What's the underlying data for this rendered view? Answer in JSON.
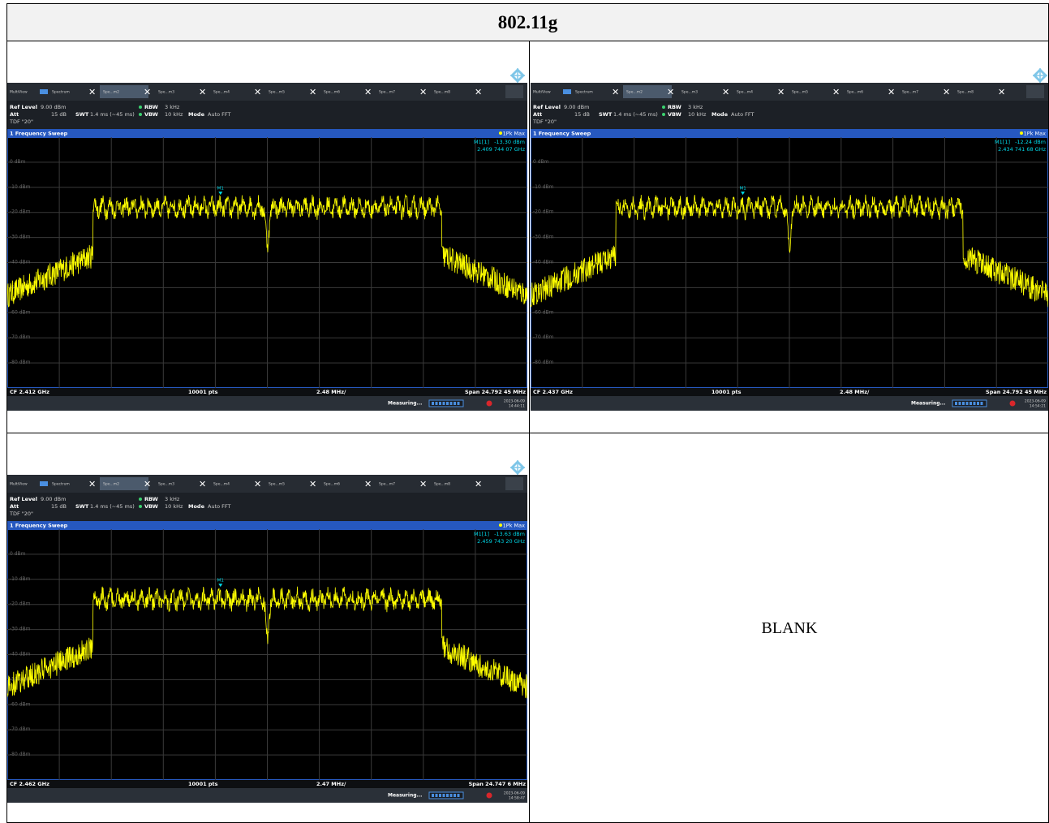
{
  "header": {
    "title": "802.11g"
  },
  "screens": [
    {
      "tabs": [
        "MultiView",
        "Spectrum",
        "Spe...m2",
        "Spe...m3",
        "Spe...m4",
        "Spe...m5",
        "Spe...m6",
        "Spe...m7",
        "Spe...m8"
      ],
      "ref_level_label": "Ref Level",
      "ref_level": "9.00 dBm",
      "att_label": "Att",
      "att": "15 dB",
      "swt_label": "SWT",
      "swt": "1.4 ms (~45 ms)",
      "rbw_label": "RBW",
      "rbw": "3 kHz",
      "vbw_label": "VBW",
      "vbw": "10 kHz",
      "mode_label": "Mode",
      "mode": "Auto FFT",
      "tdf": "TDF \"20\"",
      "window": "1 Frequency Sweep",
      "trace": "1Pk Max",
      "marker_name": "M1[1]",
      "marker_level": "-13.30 dBm",
      "marker_freq": "2.409 744 07 GHz",
      "marker_label": "M1",
      "y_labels": [
        "0 dBm",
        "-10 dBm",
        "-20 dBm",
        "-30 dBm",
        "-40 dBm",
        "-50 dBm",
        "-60 dBm",
        "-70 dBm",
        "-80 dBm"
      ],
      "center": "CF 2.412 GHz",
      "points": "10001 pts",
      "per_div": "2.48 MHz/",
      "span": "Span 24.792 45 MHz",
      "status": "Measuring...",
      "date": "2023-06-09",
      "time": "14:44:11"
    },
    {
      "tabs": [
        "MultiView",
        "Spectrum",
        "Spe...m2",
        "Spe...m3",
        "Spe...m4",
        "Spe...m5",
        "Spe...m6",
        "Spe...m7",
        "Spe...m8"
      ],
      "ref_level_label": "Ref Level",
      "ref_level": "9.00 dBm",
      "att_label": "Att",
      "att": "15 dB",
      "swt_label": "SWT",
      "swt": "1.4 ms (~45 ms)",
      "rbw_label": "RBW",
      "rbw": "3 kHz",
      "vbw_label": "VBW",
      "vbw": "10 kHz",
      "mode_label": "Mode",
      "mode": "Auto FFT",
      "tdf": "TDF \"20\"",
      "window": "1 Frequency Sweep",
      "trace": "1Pk Max",
      "marker_name": "M1[1]",
      "marker_level": "-12.24 dBm",
      "marker_freq": "2.434 741 68 GHz",
      "marker_label": "M1",
      "y_labels": [
        "0 dBm",
        "-10 dBm",
        "-20 dBm",
        "-30 dBm",
        "-40 dBm",
        "-50 dBm",
        "-60 dBm",
        "-70 dBm",
        "-80 dBm"
      ],
      "center": "CF 2.437 GHz",
      "points": "10001 pts",
      "per_div": "2.48 MHz/",
      "span": "Span 24.792 45 MHz",
      "status": "Measuring...",
      "date": "2023-06-09",
      "time": "14:54:21"
    },
    {
      "tabs": [
        "MultiView",
        "Spectrum",
        "Spe...m2",
        "Spe...m3",
        "Spe...m4",
        "Spe...m5",
        "Spe...m6",
        "Spe...m7",
        "Spe...m8"
      ],
      "ref_level_label": "Ref Level",
      "ref_level": "9.00 dBm",
      "att_label": "Att",
      "att": "15 dB",
      "swt_label": "SWT",
      "swt": "1.4 ms (~45 ms)",
      "rbw_label": "RBW",
      "rbw": "3 kHz",
      "vbw_label": "VBW",
      "vbw": "10 kHz",
      "mode_label": "Mode",
      "mode": "Auto FFT",
      "tdf": "TDF \"20\"",
      "window": "1 Frequency Sweep",
      "trace": "1Pk Max",
      "marker_name": "M1[1]",
      "marker_level": "-13.63 dBm",
      "marker_freq": "2.459 743 20 GHz",
      "marker_label": "M1",
      "y_labels": [
        "0 dBm",
        "-10 dBm",
        "-20 dBm",
        "-30 dBm",
        "-40 dBm",
        "-50 dBm",
        "-60 dBm",
        "-70 dBm",
        "-80 dBm"
      ],
      "center": "CF 2.462 GHz",
      "points": "10001 pts",
      "per_div": "2.47 MHz/",
      "span": "Span 24.747 6 MHz",
      "status": "Measuring...",
      "date": "2023-06-09",
      "time": "14:58:47"
    }
  ],
  "blank": "BLANK"
}
